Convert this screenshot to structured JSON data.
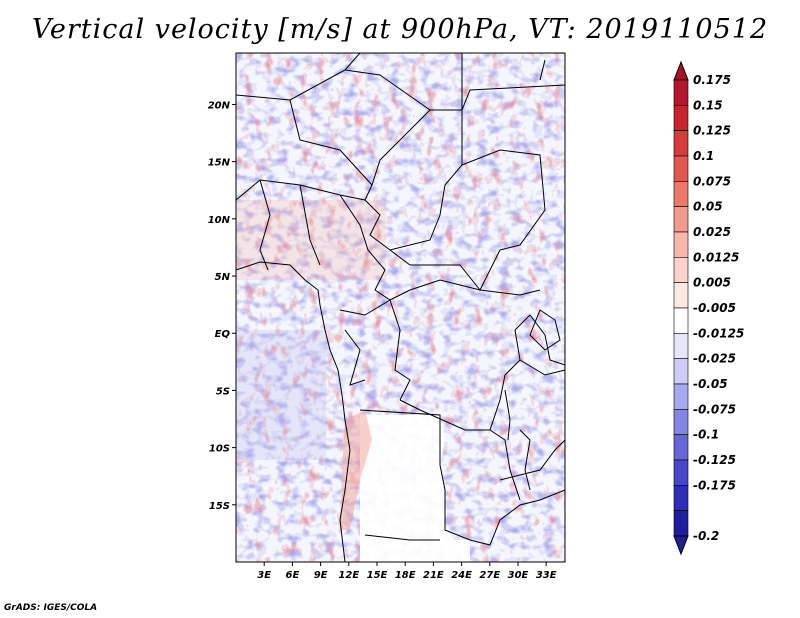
{
  "title": "Vertical velocity [m/s] at 900hPa, VT: 2019110512",
  "footer": "GrADS: IGES/COLA",
  "map": {
    "lon_range": [
      0,
      35
    ],
    "lat_range": [
      -20,
      24.5
    ],
    "lon_ticks": [
      "3E",
      "6E",
      "9E",
      "12E",
      "15E",
      "18E",
      "21E",
      "24E",
      "27E",
      "30E",
      "33E"
    ],
    "lon_tick_values": [
      3,
      6,
      9,
      12,
      15,
      18,
      21,
      24,
      27,
      30,
      33
    ],
    "lat_ticks": [
      "20N",
      "15N",
      "10N",
      "5N",
      "EQ",
      "5S",
      "10S",
      "15S"
    ],
    "lat_tick_values": [
      20,
      15,
      10,
      5,
      0,
      -5,
      -10,
      -15
    ]
  },
  "colorbar": {
    "levels": [
      {
        "label": "0.175",
        "color": "#b2182b"
      },
      {
        "label": "0.15",
        "color": "#c5262e"
      },
      {
        "label": "0.125",
        "color": "#d43d3c"
      },
      {
        "label": "0.1",
        "color": "#e0584f"
      },
      {
        "label": "0.075",
        "color": "#eb7a6b"
      },
      {
        "label": "0.05",
        "color": "#f29a8b"
      },
      {
        "label": "0.025",
        "color": "#f7b8ab"
      },
      {
        "label": "0.0125",
        "color": "#fad3ca"
      },
      {
        "label": "0.005",
        "color": "#fde9e4"
      },
      {
        "label": "-0.005",
        "color": "#ffffff"
      },
      {
        "label": "-0.0125",
        "color": "#e6e6fa"
      },
      {
        "label": "-0.025",
        "color": "#ccccf5"
      },
      {
        "label": "-0.05",
        "color": "#a8a8ee"
      },
      {
        "label": "-0.075",
        "color": "#8585e4"
      },
      {
        "label": "-0.1",
        "color": "#6666d8"
      },
      {
        "label": "-0.125",
        "color": "#4747c9"
      },
      {
        "label": "-0.175",
        "color": "#2e2eb5"
      },
      {
        "label": "-0.2",
        "color": "#1e1e9e"
      }
    ],
    "top_color": "#a01622",
    "bottom_color": "#20208f"
  }
}
